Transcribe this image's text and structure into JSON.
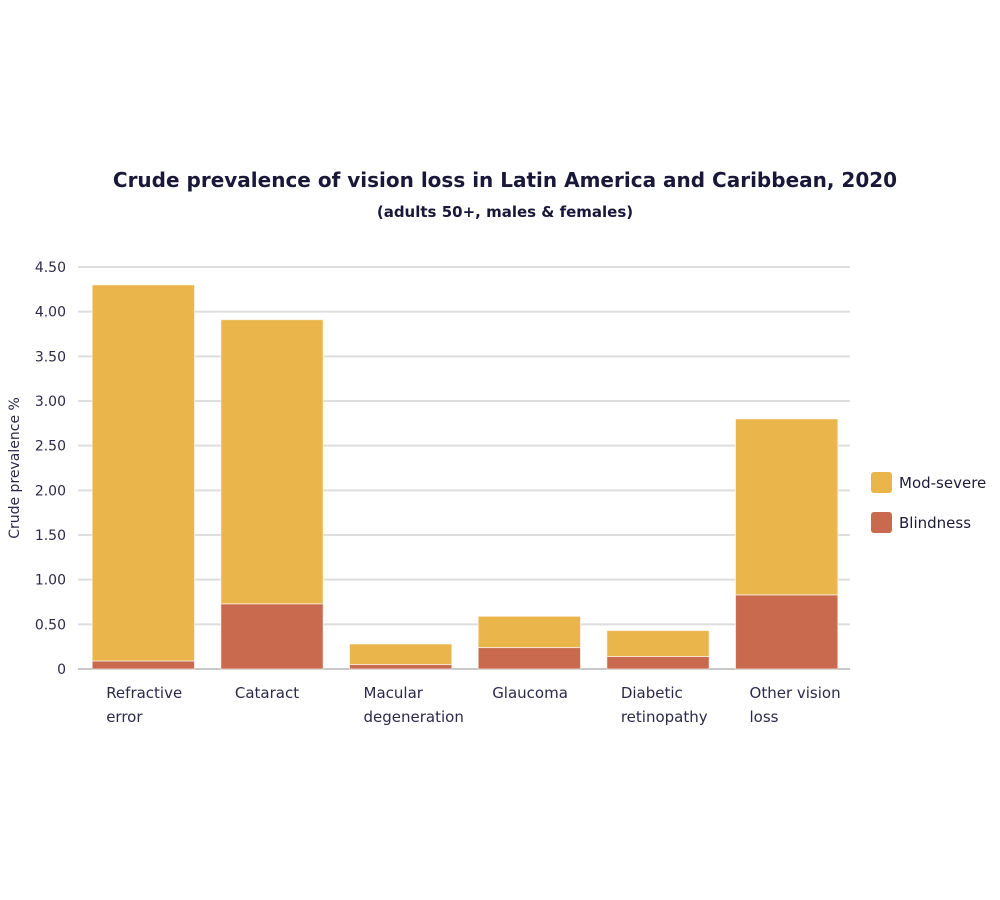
{
  "chart_data": {
    "type": "bar",
    "stacked": true,
    "title": "Crude prevalence of vision loss in Latin America and Caribbean, 2020",
    "subtitle": "(adults 50+, males & females)",
    "xlabel": "",
    "ylabel": "Crude prevalence %",
    "ylim": [
      0,
      4.5
    ],
    "yticks": [
      "0",
      "0.50",
      "1.00",
      "1.50",
      "2.00",
      "2.50",
      "3.00",
      "3.50",
      "4.00",
      "4.50"
    ],
    "ytick_values": [
      0,
      0.5,
      1.0,
      1.5,
      2.0,
      2.5,
      3.0,
      3.5,
      4.0,
      4.5
    ],
    "grid": true,
    "legend_position": "right",
    "categories": [
      [
        "Refractive",
        "error"
      ],
      [
        "Cataract"
      ],
      [
        "Macular",
        "degeneration"
      ],
      [
        "Glaucoma"
      ],
      [
        "Diabetic",
        "retinopathy"
      ],
      [
        "Other vision",
        "loss"
      ]
    ],
    "series": [
      {
        "name": "Blindness",
        "color": "#c96a4e",
        "values": [
          0.09,
          0.73,
          0.05,
          0.24,
          0.14,
          0.83
        ]
      },
      {
        "name": "Mod-severe",
        "color": "#eab54a",
        "values": [
          4.21,
          3.18,
          0.23,
          0.35,
          0.29,
          1.97
        ]
      }
    ],
    "legend": [
      {
        "name": "Mod-severe",
        "color": "#eab54a"
      },
      {
        "name": "Blindness",
        "color": "#c96a4e"
      }
    ]
  }
}
